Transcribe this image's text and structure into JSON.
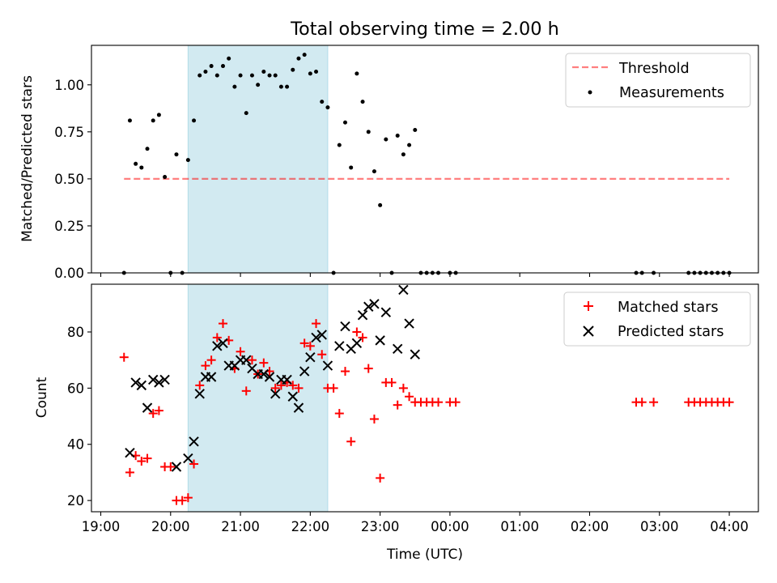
{
  "figure": {
    "title": "Total observing time = 2.00 h",
    "xlabel": "Time (UTC)",
    "x_ticks": [
      "19:00",
      "20:00",
      "21:00",
      "22:00",
      "23:00",
      "00:00",
      "01:00",
      "02:00",
      "03:00",
      "04:00"
    ]
  },
  "colors": {
    "shade": "#add8e6",
    "threshold": "#ff0000",
    "matched": "#ff0000",
    "predicted": "#000000",
    "measurements": "#000000"
  },
  "chart_data": [
    {
      "type": "scatter",
      "ylabel": "Matched/Predicted stars",
      "ylim": [
        0,
        1.21
      ],
      "xlim": [
        "19:00",
        "04:25"
      ],
      "y_ticks": [
        "0.00",
        "0.25",
        "0.50",
        "0.75",
        "1.00"
      ],
      "legend_position": "top-right",
      "shaded_interval": [
        "20:15",
        "22:15"
      ],
      "threshold": {
        "name": "Threshold",
        "value": 0.5,
        "x_range": [
          "19:20",
          "04:00"
        ]
      },
      "series": [
        {
          "name": "Measurements",
          "points": [
            [
              "19:20",
              0.0
            ],
            [
              "19:25",
              0.81
            ],
            [
              "19:30",
              0.58
            ],
            [
              "19:35",
              0.56
            ],
            [
              "19:40",
              0.66
            ],
            [
              "19:45",
              0.81
            ],
            [
              "19:50",
              0.84
            ],
            [
              "19:55",
              0.51
            ],
            [
              "20:00",
              0.0
            ],
            [
              "20:05",
              0.63
            ],
            [
              "20:10",
              0.0
            ],
            [
              "20:15",
              0.6
            ],
            [
              "20:20",
              0.81
            ],
            [
              "20:25",
              1.05
            ],
            [
              "20:30",
              1.07
            ],
            [
              "20:35",
              1.1
            ],
            [
              "20:40",
              1.05
            ],
            [
              "20:45",
              1.1
            ],
            [
              "20:50",
              1.14
            ],
            [
              "20:55",
              0.99
            ],
            [
              "21:00",
              1.05
            ],
            [
              "21:05",
              0.85
            ],
            [
              "21:10",
              1.05
            ],
            [
              "21:15",
              1.0
            ],
            [
              "21:20",
              1.07
            ],
            [
              "21:25",
              1.05
            ],
            [
              "21:30",
              1.05
            ],
            [
              "21:35",
              0.99
            ],
            [
              "21:40",
              0.99
            ],
            [
              "21:45",
              1.08
            ],
            [
              "21:50",
              1.14
            ],
            [
              "21:55",
              1.16
            ],
            [
              "22:00",
              1.06
            ],
            [
              "22:05",
              1.07
            ],
            [
              "22:10",
              0.91
            ],
            [
              "22:15",
              0.88
            ],
            [
              "22:20",
              0.0
            ],
            [
              "22:25",
              0.68
            ],
            [
              "22:30",
              0.8
            ],
            [
              "22:35",
              0.56
            ],
            [
              "22:40",
              1.06
            ],
            [
              "22:45",
              0.91
            ],
            [
              "22:50",
              0.75
            ],
            [
              "22:55",
              0.54
            ],
            [
              "23:00",
              0.36
            ],
            [
              "23:05",
              0.71
            ],
            [
              "23:10",
              0.0
            ],
            [
              "23:15",
              0.73
            ],
            [
              "23:20",
              0.63
            ],
            [
              "23:25",
              0.68
            ],
            [
              "23:30",
              0.76
            ],
            [
              "23:35",
              0.0
            ],
            [
              "23:40",
              0.0
            ],
            [
              "23:45",
              0.0
            ],
            [
              "23:50",
              0.0
            ],
            [
              "00:00",
              0.0
            ],
            [
              "00:05",
              0.0
            ],
            [
              "02:40",
              0.0
            ],
            [
              "02:45",
              0.0
            ],
            [
              "02:55",
              0.0
            ],
            [
              "03:25",
              0.0
            ],
            [
              "03:30",
              0.0
            ],
            [
              "03:35",
              0.0
            ],
            [
              "03:40",
              0.0
            ],
            [
              "03:45",
              0.0
            ],
            [
              "03:50",
              0.0
            ],
            [
              "03:55",
              0.0
            ],
            [
              "04:00",
              0.0
            ]
          ]
        }
      ]
    },
    {
      "type": "scatter",
      "ylabel": "Count",
      "ylim": [
        16,
        97
      ],
      "xlim": [
        "19:00",
        "04:25"
      ],
      "y_ticks": [
        "20",
        "40",
        "60",
        "80"
      ],
      "legend_position": "top-right",
      "shaded_interval": [
        "20:15",
        "22:15"
      ],
      "series": [
        {
          "name": "Matched stars",
          "marker": "+",
          "points": [
            [
              "19:20",
              71
            ],
            [
              "19:25",
              30
            ],
            [
              "19:30",
              36
            ],
            [
              "19:35",
              34
            ],
            [
              "19:40",
              35
            ],
            [
              "19:45",
              51
            ],
            [
              "19:50",
              52
            ],
            [
              "19:55",
              32
            ],
            [
              "20:00",
              32
            ],
            [
              "20:05",
              20
            ],
            [
              "20:10",
              20
            ],
            [
              "20:15",
              21
            ],
            [
              "20:20",
              33
            ],
            [
              "20:25",
              61
            ],
            [
              "20:30",
              68
            ],
            [
              "20:35",
              70
            ],
            [
              "20:40",
              78
            ],
            [
              "20:45",
              83
            ],
            [
              "20:50",
              77
            ],
            [
              "20:55",
              67
            ],
            [
              "21:00",
              73
            ],
            [
              "21:05",
              59
            ],
            [
              "21:10",
              70
            ],
            [
              "21:15",
              65
            ],
            [
              "21:20",
              69
            ],
            [
              "21:25",
              66
            ],
            [
              "21:30",
              60
            ],
            [
              "21:35",
              61
            ],
            [
              "21:40",
              62
            ],
            [
              "21:45",
              61
            ],
            [
              "21:50",
              60
            ],
            [
              "21:55",
              76
            ],
            [
              "22:00",
              75
            ],
            [
              "22:05",
              83
            ],
            [
              "22:10",
              72
            ],
            [
              "22:15",
              60
            ],
            [
              "22:20",
              60
            ],
            [
              "22:25",
              51
            ],
            [
              "22:30",
              66
            ],
            [
              "22:35",
              41
            ],
            [
              "22:40",
              80
            ],
            [
              "22:45",
              78
            ],
            [
              "22:50",
              67
            ],
            [
              "22:55",
              49
            ],
            [
              "23:00",
              28
            ],
            [
              "23:05",
              62
            ],
            [
              "23:10",
              62
            ],
            [
              "23:15",
              54
            ],
            [
              "23:20",
              60
            ],
            [
              "23:25",
              57
            ],
            [
              "23:30",
              55
            ],
            [
              "23:35",
              55
            ],
            [
              "23:40",
              55
            ],
            [
              "23:45",
              55
            ],
            [
              "23:50",
              55
            ],
            [
              "00:00",
              55
            ],
            [
              "00:05",
              55
            ],
            [
              "02:40",
              55
            ],
            [
              "02:45",
              55
            ],
            [
              "02:55",
              55
            ],
            [
              "03:25",
              55
            ],
            [
              "03:30",
              55
            ],
            [
              "03:35",
              55
            ],
            [
              "03:40",
              55
            ],
            [
              "03:45",
              55
            ],
            [
              "03:50",
              55
            ],
            [
              "03:55",
              55
            ],
            [
              "04:00",
              55
            ]
          ]
        },
        {
          "name": "Predicted stars",
          "marker": "x",
          "points": [
            [
              "19:25",
              37
            ],
            [
              "19:30",
              62
            ],
            [
              "19:35",
              61
            ],
            [
              "19:40",
              53
            ],
            [
              "19:45",
              63
            ],
            [
              "19:50",
              62
            ],
            [
              "19:55",
              63
            ],
            [
              "20:05",
              32
            ],
            [
              "20:15",
              35
            ],
            [
              "20:20",
              41
            ],
            [
              "20:25",
              58
            ],
            [
              "20:30",
              64
            ],
            [
              "20:35",
              64
            ],
            [
              "20:40",
              75
            ],
            [
              "20:45",
              76
            ],
            [
              "20:50",
              68
            ],
            [
              "20:55",
              68
            ],
            [
              "21:00",
              70
            ],
            [
              "21:05",
              70
            ],
            [
              "21:10",
              67
            ],
            [
              "21:15",
              65
            ],
            [
              "21:20",
              65
            ],
            [
              "21:25",
              64
            ],
            [
              "21:30",
              58
            ],
            [
              "21:35",
              63
            ],
            [
              "21:40",
              63
            ],
            [
              "21:45",
              57
            ],
            [
              "21:50",
              53
            ],
            [
              "21:55",
              66
            ],
            [
              "22:00",
              71
            ],
            [
              "22:05",
              78
            ],
            [
              "22:10",
              79
            ],
            [
              "22:15",
              68
            ],
            [
              "22:25",
              75
            ],
            [
              "22:30",
              82
            ],
            [
              "22:35",
              74
            ],
            [
              "22:40",
              76
            ],
            [
              "22:45",
              86
            ],
            [
              "22:50",
              89
            ],
            [
              "22:55",
              90
            ],
            [
              "23:00",
              77
            ],
            [
              "23:05",
              87
            ],
            [
              "23:15",
              74
            ],
            [
              "23:20",
              95
            ],
            [
              "23:25",
              83
            ],
            [
              "23:30",
              72
            ]
          ]
        }
      ]
    }
  ]
}
